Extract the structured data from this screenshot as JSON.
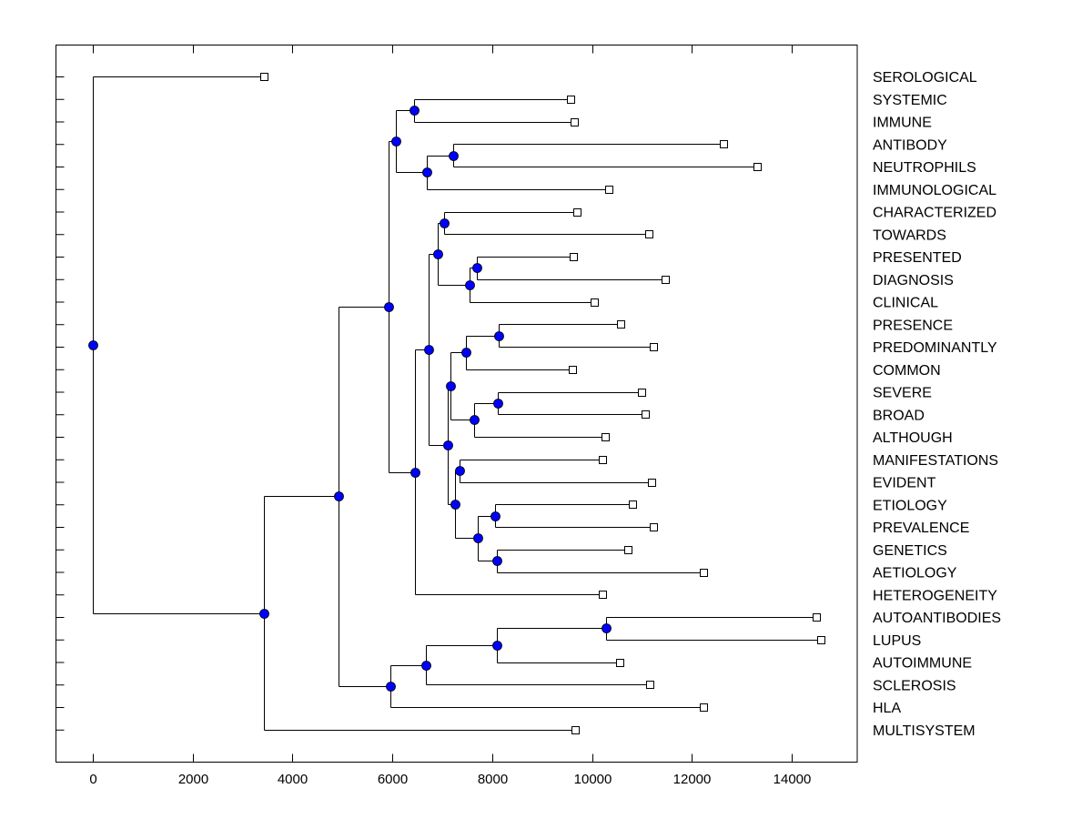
{
  "chart_data": {
    "type": "dendrogram",
    "title": "",
    "xlabel": "",
    "ylabel": "",
    "xlim": [
      -750,
      15050
    ],
    "x_ticks": [
      0,
      2000,
      4000,
      6000,
      8000,
      10000,
      12000,
      14000
    ],
    "x_tick_labels": [
      "0",
      "2000",
      "4000",
      "6000",
      "8000",
      "10000",
      "12000",
      "14000"
    ],
    "grid": false,
    "orientation": "left-to-right",
    "leaf_label_position": "right",
    "colors": {
      "internal_node_fill": "#0000ff",
      "leaf_marker_fill": "#ffffff",
      "line": "#000000"
    },
    "leaves": [
      {
        "label": "SEROLOGICAL",
        "x": 3427
      },
      {
        "label": "SYSTEMIC",
        "x": 9570
      },
      {
        "label": "IMMUNE",
        "x": 9643
      },
      {
        "label": "ANTIBODY",
        "x": 12632
      },
      {
        "label": "NEUTROPHILS",
        "x": 13307
      },
      {
        "label": "IMMUNOLOGICAL",
        "x": 10335
      },
      {
        "label": "CHARACTERIZED",
        "x": 9697
      },
      {
        "label": "TOWARDS",
        "x": 11137
      },
      {
        "label": "PRESENTED",
        "x": 9625
      },
      {
        "label": "DIAGNOSIS",
        "x": 11466
      },
      {
        "label": "CLINICAL",
        "x": 10044
      },
      {
        "label": "PRESENCE",
        "x": 10572
      },
      {
        "label": "PREDOMINANTLY",
        "x": 11229
      },
      {
        "label": "COMMON",
        "x": 9606
      },
      {
        "label": "SEVERE",
        "x": 10992
      },
      {
        "label": "BROAD",
        "x": 11064
      },
      {
        "label": "ALTHOUGH",
        "x": 10263
      },
      {
        "label": "MANIFESTATIONS",
        "x": 10208
      },
      {
        "label": "EVIDENT",
        "x": 11192
      },
      {
        "label": "ETIOLOGY",
        "x": 10810
      },
      {
        "label": "PREVALENCE",
        "x": 11229
      },
      {
        "label": "GENETICS",
        "x": 10718
      },
      {
        "label": "AETIOLOGY",
        "x": 12231
      },
      {
        "label": "HETEROGENEITY",
        "x": 10208
      },
      {
        "label": "AUTOANTIBODIES",
        "x": 14491
      },
      {
        "label": "LUPUS",
        "x": 14583
      },
      {
        "label": "AUTOIMMUNE",
        "x": 10554
      },
      {
        "label": "SCLEROSIS",
        "x": 11155
      },
      {
        "label": "HLA",
        "x": 12231
      },
      {
        "label": "MULTISYSTEM",
        "x": 9661
      }
    ],
    "internal_nodes": [
      {
        "id": "n1",
        "x": 6435,
        "children": [
          "L1",
          "L2"
        ]
      },
      {
        "id": "n2",
        "x": 7218,
        "children": [
          "L3",
          "L4"
        ]
      },
      {
        "id": "n3",
        "x": 6690,
        "children": [
          "n2",
          "L5"
        ]
      },
      {
        "id": "n4",
        "x": 6070,
        "children": [
          "n1",
          "n3"
        ]
      },
      {
        "id": "n5",
        "x": 7036,
        "children": [
          "L6",
          "L7"
        ]
      },
      {
        "id": "n6",
        "x": 7692,
        "children": [
          "L8",
          "L9"
        ]
      },
      {
        "id": "n7",
        "x": 7546,
        "children": [
          "n6",
          "L10"
        ]
      },
      {
        "id": "n8",
        "x": 6909,
        "children": [
          "n5",
          "n7"
        ]
      },
      {
        "id": "n9",
        "x": 8130,
        "children": [
          "L11",
          "L12"
        ]
      },
      {
        "id": "n10",
        "x": 7474,
        "children": [
          "n9",
          "L13"
        ]
      },
      {
        "id": "n11",
        "x": 8112,
        "children": [
          "L14",
          "L15"
        ]
      },
      {
        "id": "n12",
        "x": 7638,
        "children": [
          "n11",
          "L16"
        ]
      },
      {
        "id": "n13",
        "x": 7164,
        "children": [
          "n10",
          "n12"
        ]
      },
      {
        "id": "n14",
        "x": 7346,
        "children": [
          "L17",
          "L18"
        ]
      },
      {
        "id": "n15",
        "x": 8057,
        "children": [
          "L19",
          "L20"
        ]
      },
      {
        "id": "n16",
        "x": 8093,
        "children": [
          "L21",
          "L22"
        ]
      },
      {
        "id": "n17",
        "x": 7711,
        "children": [
          "n15",
          "n16"
        ]
      },
      {
        "id": "n18",
        "x": 7255,
        "children": [
          "n14",
          "n17"
        ]
      },
      {
        "id": "n19",
        "x": 7109,
        "children": [
          "n13",
          "n18"
        ]
      },
      {
        "id": "n20",
        "x": 6726,
        "children": [
          "n8",
          "n19"
        ]
      },
      {
        "id": "n21",
        "x": 6453,
        "children": [
          "n20",
          "L23"
        ]
      },
      {
        "id": "n22",
        "x": 5924,
        "children": [
          "n4",
          "n21"
        ]
      },
      {
        "id": "n23",
        "x": 10281,
        "children": [
          "L24",
          "L25"
        ]
      },
      {
        "id": "n24",
        "x": 8093,
        "children": [
          "n23",
          "L26"
        ]
      },
      {
        "id": "n25",
        "x": 6672,
        "children": [
          "n24",
          "L27"
        ]
      },
      {
        "id": "n26",
        "x": 5961,
        "children": [
          "n25",
          "L28"
        ]
      },
      {
        "id": "n27",
        "x": 4922,
        "children": [
          "n22",
          "n26"
        ]
      },
      {
        "id": "n28",
        "x": 3427,
        "children": [
          "n27",
          "L29"
        ]
      },
      {
        "id": "root",
        "x": 0,
        "children": [
          "L0",
          "n28"
        ]
      }
    ]
  }
}
